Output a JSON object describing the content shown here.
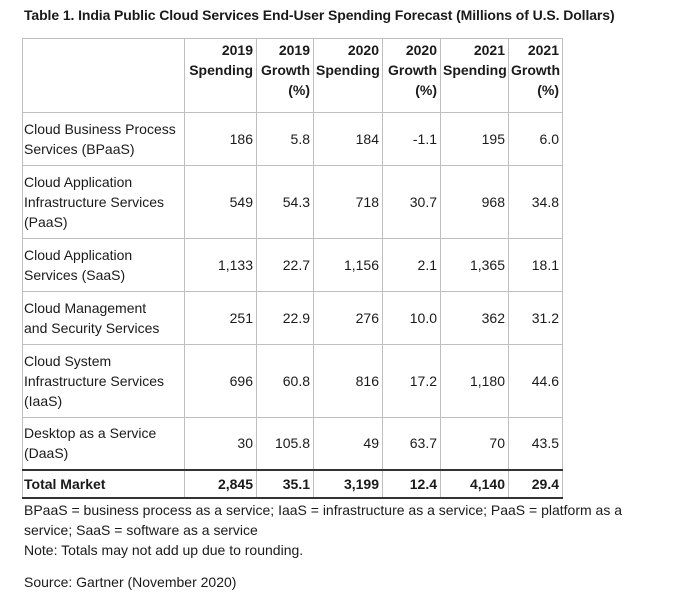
{
  "title": "Table 1. India Public Cloud Services End-User Spending Forecast (Millions of U.S. Dollars)",
  "columns": [
    [
      "2019",
      "Spending"
    ],
    [
      "2019",
      "Growth",
      "(%)"
    ],
    [
      "2020",
      "Spending"
    ],
    [
      "2020",
      "Growth",
      "(%)"
    ],
    [
      "2021",
      "Spending"
    ],
    [
      "2021",
      "Growth",
      "(%)"
    ]
  ],
  "rows": [
    {
      "label": [
        "Cloud Business Process",
        "Services (BPaaS)"
      ],
      "values": [
        "186",
        "5.8",
        "184",
        "-1.1",
        "195",
        "6.0"
      ]
    },
    {
      "label": [
        "Cloud Application",
        "Infrastructure Services",
        "(PaaS)"
      ],
      "values": [
        "549",
        "54.3",
        "718",
        "30.7",
        "968",
        "34.8"
      ]
    },
    {
      "label": [
        "Cloud Application",
        "Services (SaaS)"
      ],
      "values": [
        "1,133",
        "22.7",
        "1,156",
        "2.1",
        "1,365",
        "18.1"
      ]
    },
    {
      "label": [
        "Cloud Management",
        "and Security Services"
      ],
      "values": [
        "251",
        "22.9",
        "276",
        "10.0",
        "362",
        "31.2"
      ]
    },
    {
      "label": [
        "Cloud System",
        "Infrastructure Services",
        "(IaaS)"
      ],
      "values": [
        "696",
        "60.8",
        "816",
        "17.2",
        "1,180",
        "44.6"
      ]
    },
    {
      "label": [
        "Desktop as a Service",
        "(DaaS)"
      ],
      "values": [
        "30",
        "105.8",
        "49",
        "63.7",
        "70",
        "43.5"
      ]
    }
  ],
  "total": {
    "label": "Total Market",
    "values": [
      "2,845",
      "35.1",
      "3,199",
      "12.4",
      "4,140",
      "29.4"
    ]
  },
  "notes": {
    "abbreviations": "BPaaS = business process as a service; IaaS = infrastructure as a service; PaaS = platform as a service; SaaS = software as a service",
    "rounding": "Note: Totals may not add up due to rounding.",
    "source": "Source: Gartner (November 2020)"
  }
}
